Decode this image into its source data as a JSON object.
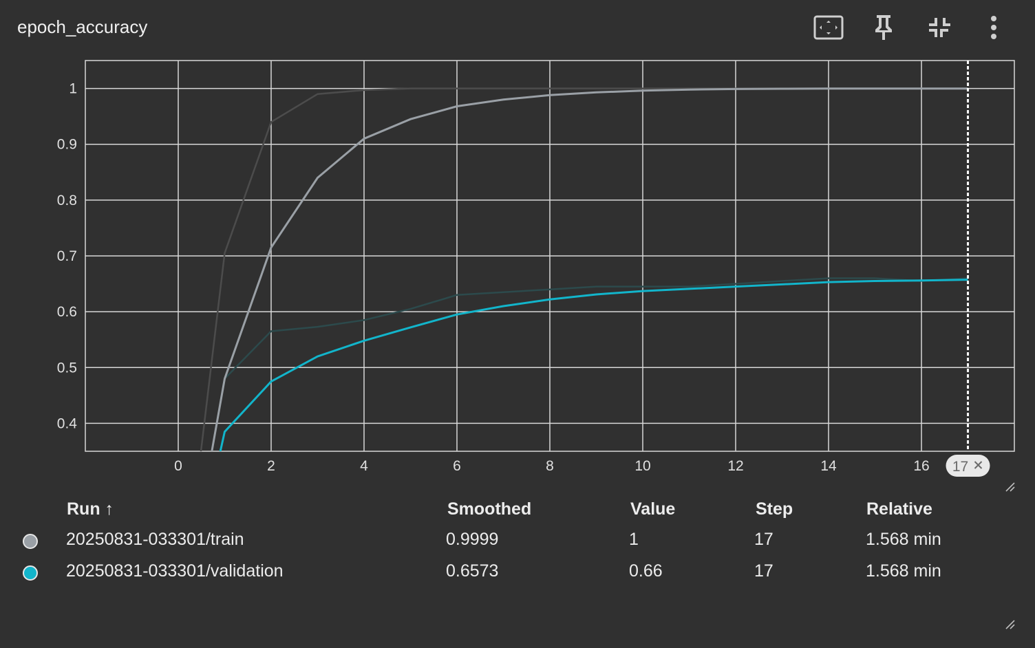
{
  "card": {
    "title": "epoch_accuracy"
  },
  "toolbar": {
    "icons": [
      "fit-to-screen-icon",
      "pin-icon",
      "collapse-icon",
      "more-vert-icon"
    ]
  },
  "chart_data": {
    "type": "line",
    "xlim": [
      -2,
      18
    ],
    "ylim": [
      0.35,
      1.05
    ],
    "x_ticks": [
      0,
      2,
      4,
      6,
      8,
      10,
      12,
      14,
      16
    ],
    "y_ticks": [
      0.4,
      0.5,
      0.6,
      0.7,
      0.8,
      0.9,
      1
    ],
    "grid": true,
    "hover_step": 17,
    "hover_label": "17",
    "series": [
      {
        "name": "20250831-033301/train",
        "color": "#9aa0a6",
        "raw_color": "#4c4c4c",
        "x": [
          0,
          1,
          2,
          3,
          4,
          5,
          6,
          7,
          8,
          9,
          10,
          11,
          12,
          13,
          14,
          15,
          16,
          17
        ],
        "raw": [
          0.01,
          0.705,
          0.94,
          0.99,
          0.997,
          1,
          1,
          1,
          1,
          1,
          1,
          1,
          1,
          1,
          1,
          1,
          1,
          1
        ],
        "smoothed": [
          0.01,
          0.48,
          0.715,
          0.84,
          0.91,
          0.945,
          0.968,
          0.98,
          0.988,
          0.993,
          0.996,
          0.998,
          0.999,
          0.9995,
          0.9997,
          0.9998,
          0.9999,
          0.9999
        ]
      },
      {
        "name": "20250831-033301/validation",
        "color": "#12b5cb",
        "raw_color": "#2c4a4c",
        "x": [
          0,
          1,
          2,
          3,
          4,
          5,
          6,
          7,
          8,
          9,
          10,
          11,
          12,
          13,
          14,
          15,
          16,
          17
        ],
        "raw": [
          0.01,
          0.48,
          0.565,
          0.573,
          0.585,
          0.605,
          0.63,
          0.635,
          0.64,
          0.645,
          0.645,
          0.645,
          0.65,
          0.655,
          0.66,
          0.66,
          0.655,
          0.66
        ],
        "smoothed": [
          0.01,
          0.385,
          0.475,
          0.52,
          0.548,
          0.572,
          0.595,
          0.61,
          0.622,
          0.631,
          0.637,
          0.641,
          0.645,
          0.649,
          0.653,
          0.655,
          0.656,
          0.6573
        ]
      }
    ]
  },
  "table": {
    "headers": {
      "run": "Run ↑",
      "smoothed": "Smoothed",
      "value": "Value",
      "step": "Step",
      "relative": "Relative"
    },
    "rows": [
      {
        "run": "20250831-033301/train",
        "smoothed": "0.9999",
        "value": "1",
        "step": "17",
        "relative": "1.568 min",
        "color": "#9aa0a6"
      },
      {
        "run": "20250831-033301/validation",
        "smoothed": "0.6573",
        "value": "0.66",
        "step": "17",
        "relative": "1.568 min",
        "color": "#12b5cb"
      }
    ]
  }
}
